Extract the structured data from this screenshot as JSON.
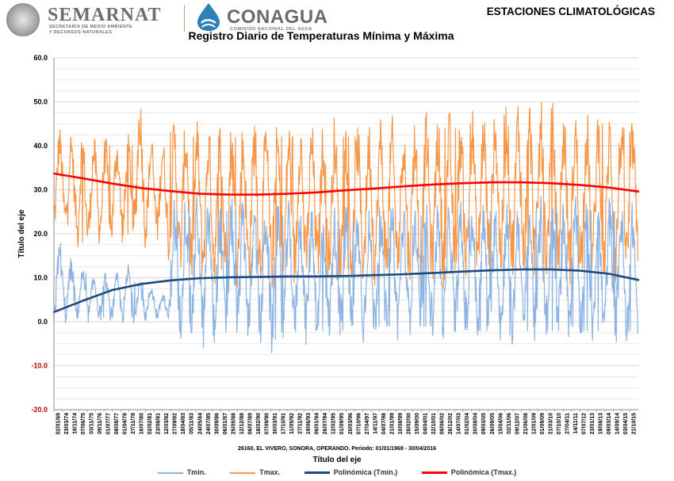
{
  "header": {
    "semarnat_name": "SEMARNAT",
    "semarnat_sub_line1": "SECRETARÍA DE MEDIO AMBIENTE",
    "semarnat_sub_line2": "Y RECURSOS NATURALES",
    "conagua_name": "CONAGUA",
    "conagua_sub": "COMISIÓN NACIONAL DEL AGUA",
    "section_title": "ESTACIONES CLIMATOLÓGICAS"
  },
  "chart_data": {
    "type": "line",
    "title": "Registro Diario de Temperaturas Mínima y Máxima",
    "subtitle": "26160, EL VIVERO, SONORA, OPERANDO. Periodo: 01/01/1969 - 30/04/2016",
    "xlabel": "Título del eje",
    "ylabel": "Título del eje",
    "ylim": [
      -20,
      60
    ],
    "yticks": [
      "60.0",
      "50.0",
      "40.0",
      "30.0",
      "20.0",
      "10.0",
      "0.0",
      "-10.0",
      "-20.0"
    ],
    "x_tick_labels": [
      "02/01/69",
      "23/03/74",
      "16/11/74",
      "07/06/75",
      "03/11/75",
      "09/11/76",
      "01/07/77",
      "08/08/77",
      "01/04/78",
      "27/11/78",
      "16/07/80",
      "02/02/81",
      "23/08/81",
      "12/03/82",
      "27/09/82",
      "18/04/83",
      "05/11/83",
      "24/05/84",
      "24/07/85",
      "30/09/86",
      "06/01/87",
      "25/05/88",
      "12/12/88",
      "06/07/89",
      "18/02/90",
      "07/09/90",
      "30/03/91",
      "17/10/91",
      "11/05/92",
      "27/11/92",
      "19/06/93",
      "06/01/94",
      "26/07/94",
      "12/02/95",
      "01/09/95",
      "20/03/96",
      "07/10/96",
      "27/04/97",
      "14/11/97",
      "04/07/98",
      "21/01/99",
      "10/08/99",
      "28/02/00",
      "15/09/00",
      "04/04/01",
      "22/10/01",
      "08/06/02",
      "26/12/02",
      "14/07/03",
      "01/02/04",
      "20/08/04",
      "09/03/05",
      "26/09/05",
      "15/04/06",
      "02/11/06",
      "09/12/07",
      "21/06/08",
      "12/01/09",
      "01/09/09",
      "21/03/10",
      "07/10/10",
      "27/04/11",
      "14/11/11",
      "07/07/12",
      "23/01/13",
      "19/08/13",
      "09/03/14",
      "14/09/14",
      "03/04/15",
      "21/10/15"
    ],
    "legend_position": "bottom",
    "grid": true,
    "series": [
      {
        "name": "Tmin.",
        "color": "#8db3e2",
        "description_values": "daily minimum temperature, seasonal oscillation",
        "seasonal_low": [
          1,
          1,
          1,
          1,
          1,
          1,
          1,
          1,
          1,
          1,
          -2,
          -2,
          -2,
          -3,
          -3,
          -2,
          -2,
          -2,
          -3,
          -4,
          -2,
          -2,
          -2,
          -2,
          -2,
          -2,
          -2,
          -2,
          -1,
          -1,
          -1,
          -1,
          -1,
          -1,
          -1,
          -2,
          -2,
          -2,
          -2,
          -3,
          -3,
          -2,
          -2,
          -2,
          -2,
          -1,
          -2,
          -2,
          -3,
          -3,
          -2
        ],
        "seasonal_high": [
          17,
          13,
          11,
          10,
          10,
          10,
          12,
          9,
          8,
          6,
          25,
          26,
          26,
          25,
          24,
          25,
          25,
          24,
          25,
          24,
          24,
          24,
          24,
          23,
          23,
          24,
          23,
          23,
          24,
          24,
          24,
          24,
          24,
          24,
          24,
          24,
          24,
          24,
          25,
          25,
          25,
          25,
          25,
          26,
          26,
          26,
          25,
          25,
          25,
          25,
          24
        ]
      },
      {
        "name": "Tmax.",
        "color": "#f79646",
        "seasonal_low": [
          22,
          22,
          18,
          20,
          20,
          20,
          20,
          20,
          20,
          20,
          14,
          13,
          12,
          12,
          12,
          11,
          11,
          12,
          11,
          11,
          11,
          11,
          12,
          12,
          12,
          12,
          12,
          12,
          12,
          12,
          12,
          12,
          12,
          12,
          12,
          12,
          13,
          13,
          13,
          13,
          13,
          13,
          13,
          13,
          13,
          12,
          12,
          12,
          12,
          12,
          13
        ],
        "seasonal_high": [
          42,
          41,
          41,
          40,
          40,
          40,
          40,
          48,
          40,
          40,
          43,
          43,
          42,
          42,
          42,
          42,
          42,
          43,
          42,
          42,
          42,
          43,
          42,
          42,
          43,
          42,
          42,
          42,
          43,
          43,
          43,
          43,
          44,
          44,
          44,
          44,
          45,
          45,
          46,
          47,
          47,
          47,
          46,
          46,
          45,
          45,
          45,
          45,
          44,
          44,
          43
        ]
      },
      {
        "name": "Polinómica (Tmin.)",
        "color": "#1f497d",
        "x_frac": [
          0,
          0.05,
          0.1,
          0.15,
          0.2,
          0.25,
          0.3,
          0.35,
          0.4,
          0.45,
          0.5,
          0.55,
          0.6,
          0.65,
          0.7,
          0.75,
          0.8,
          0.85,
          0.9,
          0.95,
          1
        ],
        "values": [
          2.2,
          4.8,
          7.2,
          8.6,
          9.4,
          9.9,
          10.1,
          10.2,
          10.3,
          10.3,
          10.4,
          10.6,
          10.8,
          11.1,
          11.4,
          11.7,
          11.9,
          11.9,
          11.6,
          10.9,
          9.5
        ]
      },
      {
        "name": "Polinómica (Tmax.)",
        "color": "#ff0000",
        "x_frac": [
          0,
          0.05,
          0.1,
          0.15,
          0.2,
          0.25,
          0.3,
          0.35,
          0.4,
          0.45,
          0.5,
          0.55,
          0.6,
          0.65,
          0.7,
          0.75,
          0.8,
          0.85,
          0.9,
          0.95,
          1
        ],
        "values": [
          33.7,
          32.6,
          31.4,
          30.4,
          29.7,
          29.1,
          28.9,
          28.9,
          29.1,
          29.4,
          29.9,
          30.3,
          30.8,
          31.2,
          31.5,
          31.7,
          31.7,
          31.5,
          31.1,
          30.5,
          29.6
        ]
      }
    ]
  }
}
